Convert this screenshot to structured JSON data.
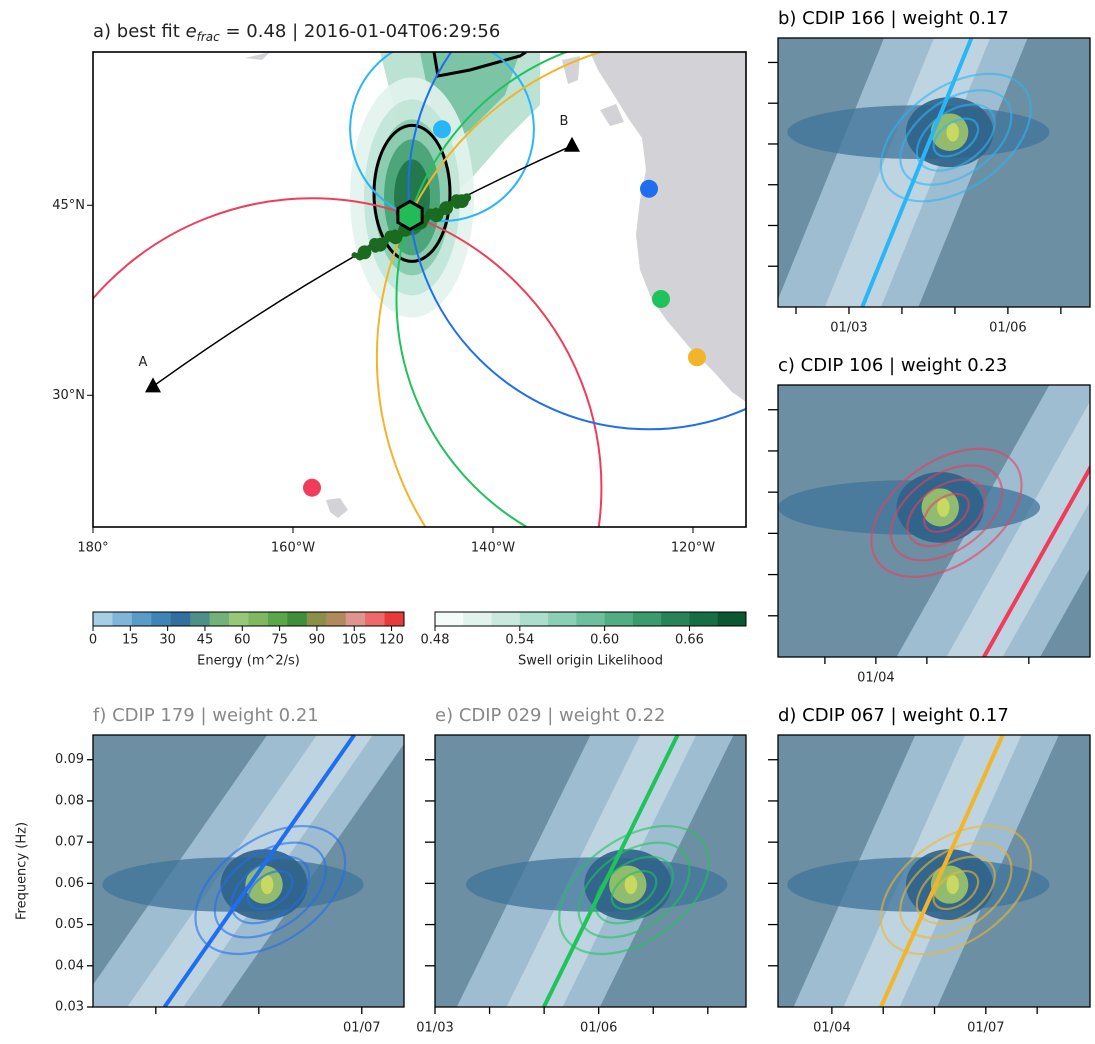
{
  "chart_data": [
    {
      "type": "map",
      "title_parts": [
        "a) best fit ",
        "e",
        "frac",
        " = 0.48 | 2016-01-04T06:29:56"
      ],
      "xlim": [
        -180,
        -114.7
      ],
      "ylim": [
        19.6,
        57.1
      ],
      "xticks": [
        {
          "value": -180,
          "label": "180°"
        },
        {
          "value": -160,
          "label": "160°W"
        },
        {
          "value": -140,
          "label": "140°W"
        },
        {
          "value": -120,
          "label": "120°W"
        }
      ],
      "yticks": [
        {
          "value": 45,
          "label": "45°N"
        },
        {
          "value": 30,
          "label": "30°N"
        }
      ],
      "annotations": [
        {
          "text": "A",
          "lon": -174,
          "lat": 30.7
        },
        {
          "text": "B",
          "lon": -132.1,
          "lat": 49.7
        }
      ],
      "best_fit": {
        "lon": -148.3,
        "lat": 44.2,
        "color": "#22bb55"
      },
      "stations": [
        {
          "lon": -145.1,
          "lat": 51.0,
          "color": "#29b6f6"
        },
        {
          "lon": -158.1,
          "lat": 22.7,
          "color": "#f03c5a"
        },
        {
          "lon": -119.6,
          "lat": 33.0,
          "color": "#f2b52a"
        },
        {
          "lon": -123.2,
          "lat": 37.6,
          "color": "#1ec45a"
        },
        {
          "lon": -124.4,
          "lat": 46.3,
          "color": "#1f6ef0"
        }
      ]
    },
    {
      "type": "colorbar",
      "label": "Energy (m^2/s)",
      "lim": [
        0,
        125
      ],
      "ticks": [
        0,
        15,
        30,
        45,
        60,
        75,
        90,
        105,
        120
      ],
      "colors": [
        "#a6cfe6",
        "#7fb5d8",
        "#5a9cc8",
        "#3f84b6",
        "#316f9f",
        "#4f8f8a",
        "#74b07a",
        "#96c977",
        "#7fb85f",
        "#5aa64a",
        "#3f8f3a",
        "#8c8f4a",
        "#b08a5c",
        "#e0948e",
        "#ee6a6a",
        "#e83a3a"
      ]
    },
    {
      "type": "colorbar",
      "label": "Swell origin Likelihood",
      "lim": [
        0.48,
        0.7
      ],
      "ticks": [
        0.48,
        0.54,
        {
          "value": 0.6,
          "label": "0.60"
        },
        0.66
      ],
      "colors": [
        "#f4fbf8",
        "#e0f3ec",
        "#c8eade",
        "#acdecd",
        "#8ccfb7",
        "#6dbf9d",
        "#52ad84",
        "#3c9a6d",
        "#288458",
        "#176e44",
        "#0b5731"
      ]
    },
    {
      "type": "spectrogram",
      "title": "b) CDIP 166 | weight 0.17",
      "title_color": "#000000",
      "color": "#29b6f6",
      "xlim": [
        1.66,
        7.55
      ],
      "xticks": [
        {
          "value": 3,
          "label": "01/03"
        },
        {
          "value": 6,
          "label": "01/06"
        }
      ],
      "minor_xticks": [
        2,
        4,
        5,
        7
      ],
      "ylim": [
        0.03,
        0.096
      ],
      "yticks_unlabeled": [
        0.04,
        0.05,
        0.06,
        0.07,
        0.08,
        0.09
      ]
    },
    {
      "type": "spectrogram",
      "title": "c) CDIP 106 | weight 0.23",
      "title_color": "#000000",
      "color": "#f03c5a",
      "xlim": [
        2.08,
        8.2
      ],
      "xticks": [
        {
          "value": 4,
          "label": "01/04"
        }
      ],
      "minor_xticks": [
        3,
        5,
        7
      ],
      "ylim": [
        0.03,
        0.096
      ],
      "yticks_unlabeled": [
        0.04,
        0.05,
        0.06,
        0.07,
        0.08,
        0.09
      ]
    },
    {
      "type": "spectrogram",
      "title": "d) CDIP 067 | weight 0.17",
      "title_color": "#000000",
      "color": "#f2b52a",
      "xlim": [
        2.95,
        9.03
      ],
      "xticks": [
        {
          "value": 4,
          "label": "01/04"
        },
        {
          "value": 7,
          "label": "01/07"
        }
      ],
      "minor_xticks": [
        5,
        6,
        8
      ],
      "ylim": [
        0.03,
        0.096
      ],
      "yticks_unlabeled": [
        0.04,
        0.05,
        0.06,
        0.07,
        0.08,
        0.09
      ]
    },
    {
      "type": "spectrogram",
      "title": "e) CDIP 029 | weight 0.22",
      "title_color": "#888888",
      "color": "#1ec45a",
      "xlim": [
        3,
        8.7
      ],
      "xticks": [
        {
          "value": 3,
          "label": "01/03"
        },
        {
          "value": 6,
          "label": "01/06"
        }
      ],
      "minor_xticks": [
        4,
        5,
        7,
        8
      ],
      "ylim": [
        0.03,
        0.096
      ],
      "yticks_unlabeled": [
        0.04,
        0.05,
        0.06,
        0.07,
        0.08,
        0.09
      ]
    },
    {
      "type": "spectrogram",
      "title": "f) CDIP 179 | weight 0.21",
      "title_color": "#888888",
      "color": "#1f6ef0",
      "xlim": [
        1.78,
        7.82
      ],
      "xticks": [
        {
          "value": 7,
          "label": "01/07"
        }
      ],
      "minor_xticks": [
        3,
        5
      ],
      "ylim": [
        0.03,
        0.096
      ],
      "ylabel": "Frequency (Hz)",
      "yticks": [
        0.03,
        0.04,
        0.05,
        0.06,
        0.07,
        0.08,
        0.09
      ]
    }
  ]
}
